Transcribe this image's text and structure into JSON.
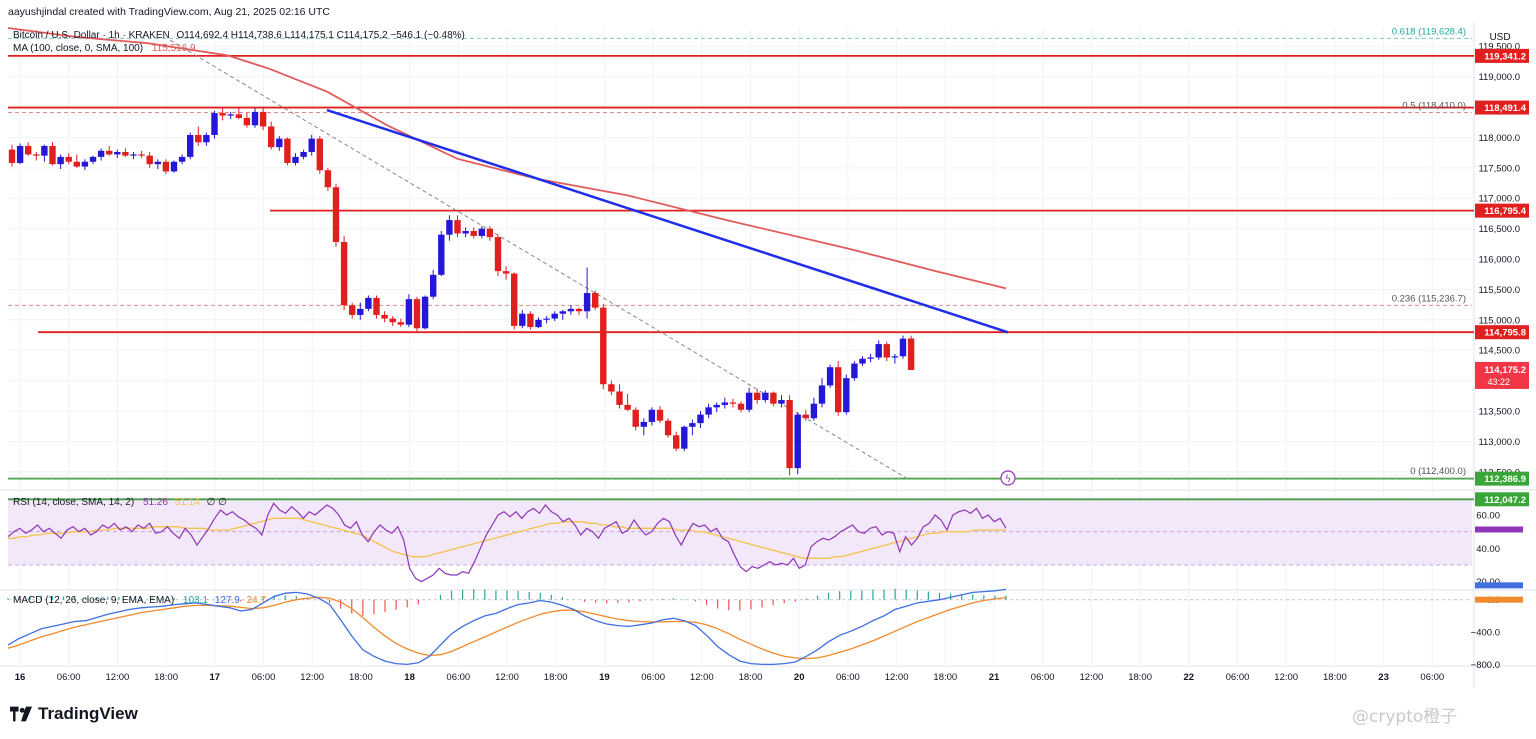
{
  "header": {
    "credit": "aayushjindal created with TradingView.com, Aug 21, 2025 02:16 UTC"
  },
  "legend": {
    "symbol": "Bitcoin / U.S. Dollar · 1h · KRAKEN",
    "ohlc": "O114,692.4  H114,738.6  L114,175.1  C114,175.2  −546.1 (−0.48%)",
    "ma_label": "MA (100, close, 0, SMA, 100)",
    "ma_value": "115,516.9",
    "rsi_label": "RSI (14, close, SMA, 14, 2)",
    "rsi_value": "51.26",
    "rsi_ma": "51.14",
    "rsi_extra": "∅  ∅",
    "macd_label": "MACD (12, 26, close, 9, EMA, EMA)",
    "macd_hist": "103.1",
    "macd_line": "127.9",
    "macd_signal": "24.7"
  },
  "brand": {
    "name": "TradingView",
    "watermark": "@crypto橙子"
  },
  "colors": {
    "bull": "#2418d6",
    "bear": "#e01f1f",
    "ma": "#e35a5a",
    "trend": "#1f2ee8",
    "resistance": "#e01f1f",
    "support": "#3aa63a",
    "rsi": "#8e35b8",
    "rsi_ma": "#f3c24a",
    "macd_line": "#3f6fe0",
    "signal": "#f08a2c",
    "hist_pos": "#26a69a",
    "hist_neg": "#ef5350",
    "price_badge": "#f23645"
  },
  "chart_data": {
    "type": "candlestick",
    "currency": "USD",
    "ylim": [
      112200,
      119800
    ],
    "y_ticks": [
      112500,
      113000,
      113500,
      114000,
      114500,
      115000,
      115500,
      116000,
      116500,
      117000,
      117500,
      118000,
      118500,
      119000,
      119500
    ],
    "x_ticks": [
      "16",
      "06:00",
      "12:00",
      "18:00",
      "17",
      "06:00",
      "12:00",
      "18:00",
      "18",
      "06:00",
      "12:00",
      "18:00",
      "19",
      "06:00",
      "12:00",
      "18:00",
      "20",
      "06:00",
      "12:00",
      "18:00",
      "21",
      "06:00",
      "12:00",
      "18:00",
      "22",
      "06:00",
      "12:00",
      "18:00",
      "23",
      "06:00"
    ],
    "candles": [
      [
        117800,
        117880,
        117520,
        117580
      ],
      [
        117580,
        117900,
        117560,
        117860
      ],
      [
        117860,
        117920,
        117700,
        117720
      ],
      [
        117720,
        117760,
        117620,
        117700
      ],
      [
        117700,
        117880,
        117600,
        117860
      ],
      [
        117860,
        117920,
        117540,
        117560
      ],
      [
        117560,
        117720,
        117480,
        117680
      ],
      [
        117680,
        117740,
        117560,
        117600
      ],
      [
        117600,
        117720,
        117500,
        117520
      ],
      [
        117520,
        117640,
        117460,
        117600
      ],
      [
        117600,
        117700,
        117560,
        117680
      ],
      [
        117680,
        117820,
        117620,
        117780
      ],
      [
        117780,
        117860,
        117700,
        117720
      ],
      [
        117720,
        117800,
        117660,
        117760
      ],
      [
        117760,
        117820,
        117680,
        117700
      ],
      [
        117700,
        117760,
        117640,
        117720
      ],
      [
        117720,
        117780,
        117660,
        117700
      ],
      [
        117700,
        117760,
        117500,
        117560
      ],
      [
        117560,
        117640,
        117480,
        117600
      ],
      [
        117600,
        117640,
        117400,
        117440
      ],
      [
        117440,
        117620,
        117420,
        117600
      ],
      [
        117600,
        117720,
        117560,
        117680
      ],
      [
        117680,
        118080,
        117640,
        118040
      ],
      [
        118040,
        118180,
        117860,
        117920
      ],
      [
        117920,
        118080,
        117860,
        118040
      ],
      [
        118040,
        118440,
        117980,
        118400
      ],
      [
        118400,
        118480,
        118280,
        118360
      ],
      [
        118360,
        118420,
        118300,
        118380
      ],
      [
        118380,
        118480,
        118300,
        118320
      ],
      [
        118320,
        118410,
        118160,
        118200
      ],
      [
        118200,
        118480,
        118160,
        118420
      ],
      [
        118420,
        118500,
        118120,
        118180
      ],
      [
        118180,
        118260,
        117800,
        117840
      ],
      [
        117840,
        118020,
        117780,
        117980
      ],
      [
        117980,
        118000,
        117540,
        117580
      ],
      [
        117580,
        117740,
        117540,
        117680
      ],
      [
        117680,
        117800,
        117640,
        117760
      ],
      [
        117760,
        118040,
        117700,
        117980
      ],
      [
        117980,
        118020,
        117400,
        117460
      ],
      [
        117460,
        117500,
        117120,
        117180
      ],
      [
        117180,
        117240,
        116200,
        116280
      ],
      [
        116280,
        116380,
        115160,
        115240
      ],
      [
        115240,
        115280,
        115020,
        115080
      ],
      [
        115080,
        115280,
        115000,
        115180
      ],
      [
        115180,
        115400,
        115140,
        115360
      ],
      [
        115360,
        115400,
        115020,
        115080
      ],
      [
        115080,
        115140,
        114960,
        115020
      ],
      [
        115020,
        115060,
        114900,
        114960
      ],
      [
        114960,
        115020,
        114880,
        114920
      ],
      [
        114920,
        115420,
        114880,
        115340
      ],
      [
        115340,
        115380,
        114800,
        114860
      ],
      [
        114860,
        115400,
        114840,
        115380
      ],
      [
        115380,
        115820,
        115340,
        115740
      ],
      [
        115740,
        116460,
        115720,
        116400
      ],
      [
        116400,
        116720,
        116300,
        116640
      ],
      [
        116640,
        116720,
        116360,
        116420
      ],
      [
        116420,
        116520,
        116360,
        116460
      ],
      [
        116460,
        116520,
        116340,
        116380
      ],
      [
        116380,
        116540,
        116340,
        116500
      ],
      [
        116500,
        116540,
        116300,
        116360
      ],
      [
        116360,
        116400,
        115720,
        115800
      ],
      [
        115800,
        115880,
        115660,
        115760
      ],
      [
        115760,
        115780,
        114840,
        114900
      ],
      [
        114900,
        115160,
        114860,
        115100
      ],
      [
        115100,
        115140,
        114840,
        114880
      ],
      [
        114880,
        115040,
        114860,
        115000
      ],
      [
        115000,
        115060,
        114940,
        115020
      ],
      [
        115020,
        115140,
        114980,
        115100
      ],
      [
        115100,
        115160,
        115000,
        115140
      ],
      [
        115140,
        115240,
        115080,
        115180
      ],
      [
        115180,
        115200,
        115080,
        115140
      ],
      [
        115140,
        115860,
        115020,
        115440
      ],
      [
        115440,
        115480,
        115160,
        115200
      ],
      [
        115200,
        115260,
        113860,
        113940
      ],
      [
        113940,
        114000,
        113760,
        113820
      ],
      [
        113820,
        113940,
        113540,
        113600
      ],
      [
        113600,
        113780,
        113500,
        113520
      ],
      [
        113520,
        113560,
        113180,
        113240
      ],
      [
        113240,
        113380,
        113100,
        113320
      ],
      [
        113320,
        113560,
        113260,
        113520
      ],
      [
        113520,
        113580,
        113300,
        113340
      ],
      [
        113340,
        113380,
        113060,
        113100
      ],
      [
        113100,
        113160,
        112840,
        112880
      ],
      [
        112880,
        113260,
        112840,
        113240
      ],
      [
        113240,
        113360,
        113100,
        113300
      ],
      [
        113300,
        113500,
        113220,
        113440
      ],
      [
        113440,
        113620,
        113380,
        113560
      ],
      [
        113560,
        113640,
        113480,
        113600
      ],
      [
        113600,
        113720,
        113540,
        113640
      ],
      [
        113640,
        113700,
        113560,
        113620
      ],
      [
        113620,
        113660,
        113480,
        113520
      ],
      [
        113520,
        113880,
        113480,
        113800
      ],
      [
        113800,
        113860,
        113620,
        113680
      ],
      [
        113680,
        113840,
        113640,
        113800
      ],
      [
        113800,
        113820,
        113580,
        113620
      ],
      [
        113620,
        113760,
        113560,
        113680
      ],
      [
        113680,
        113760,
        112440,
        112560
      ],
      [
        112560,
        113480,
        112460,
        113440
      ],
      [
        113440,
        113520,
        113340,
        113380
      ],
      [
        113380,
        113720,
        113340,
        113620
      ],
      [
        113620,
        114040,
        113560,
        113920
      ],
      [
        113920,
        114260,
        113880,
        114220
      ],
      [
        114220,
        114320,
        113420,
        113480
      ],
      [
        113480,
        114100,
        113440,
        114040
      ],
      [
        114040,
        114320,
        114000,
        114280
      ],
      [
        114280,
        114400,
        114240,
        114360
      ],
      [
        114360,
        114440,
        114300,
        114380
      ],
      [
        114380,
        114660,
        114340,
        114600
      ],
      [
        114600,
        114640,
        114320,
        114380
      ],
      [
        114380,
        114440,
        114280,
        114400
      ],
      [
        114400,
        114740,
        114360,
        114690
      ],
      [
        114692.4,
        114738.6,
        114175.1,
        114175.2
      ]
    ],
    "ma100": [
      [
        119800,
        0
      ],
      [
        119650,
        0.07
      ],
      [
        119550,
        0.14
      ],
      [
        119350,
        0.22
      ],
      [
        119140,
        0.26
      ],
      [
        118750,
        0.32
      ],
      [
        118200,
        0.38
      ],
      [
        117650,
        0.45
      ],
      [
        117320,
        0.53
      ],
      [
        117050,
        0.62
      ],
      [
        116640,
        0.72
      ],
      [
        116180,
        0.84
      ],
      [
        115800,
        0.93
      ],
      [
        115516.9,
        1.0
      ]
    ],
    "trendline": [
      [
        118450,
        0.293
      ],
      [
        114795,
        1.0
      ]
    ],
    "dashed_channel": [
      [
        119600,
        0.0
      ],
      [
        112400,
        0.9
      ]
    ],
    "levels": [
      {
        "label": "119,341.2",
        "price": 119341.2,
        "kind": "resistance"
      },
      {
        "label": "118,491.4",
        "price": 118491.4,
        "kind": "resistance"
      },
      {
        "label": "116,795.4",
        "price": 116795.4,
        "kind": "resistance"
      },
      {
        "label": "114,795.8",
        "price": 114795.8,
        "kind": "resistance"
      },
      {
        "label": "112,386.9",
        "price": 112386.9,
        "kind": "support"
      },
      {
        "label": "112,047.2",
        "price": 112047.2,
        "kind": "support"
      }
    ],
    "fib": [
      {
        "label": "0.618 (119,628.4)",
        "price": 119628.4
      },
      {
        "label": "0.5 (118,410.0)",
        "price": 118410.0
      },
      {
        "label": "0.236 (115,236.7)",
        "price": 115236.7
      },
      {
        "label": "0 (112,400.0)",
        "price": 112400.0
      }
    ],
    "last_price": {
      "label": "114,175.2",
      "timer": "43:22",
      "price": 114175.2
    },
    "rsi": {
      "ylim": [
        15,
        75
      ],
      "ticks": [
        60,
        40,
        20
      ],
      "band": [
        30,
        70
      ],
      "values": [
        47,
        50,
        52,
        49,
        51,
        54,
        50,
        52,
        49,
        46,
        51,
        53,
        50,
        52,
        48,
        50,
        54,
        52,
        55,
        51,
        53,
        50,
        54,
        52,
        55,
        49,
        50,
        53,
        49,
        46,
        52,
        48,
        42,
        47,
        52,
        58,
        63,
        60,
        62,
        59,
        57,
        54,
        52,
        48,
        60,
        67,
        63,
        61,
        65,
        62,
        58,
        62,
        60,
        63,
        66,
        64,
        60,
        54,
        52,
        56,
        48,
        44,
        50,
        54,
        51,
        49,
        53,
        45,
        28,
        22,
        20,
        22,
        24,
        28,
        25,
        24,
        24,
        26,
        25,
        32,
        40,
        48,
        54,
        60,
        62,
        59,
        62,
        58,
        62,
        64,
        61,
        66,
        62,
        60,
        56,
        58,
        54,
        48,
        52,
        50,
        46,
        52,
        54,
        56,
        49,
        51,
        57,
        52,
        48,
        50,
        55,
        58,
        56,
        48,
        42,
        49,
        55,
        53,
        54,
        50,
        52,
        46,
        44,
        36,
        29,
        26,
        29,
        28,
        30,
        32,
        30,
        31,
        30,
        34,
        28,
        30,
        41,
        44,
        46,
        45,
        47,
        50,
        52,
        54,
        50,
        49,
        52,
        53,
        48,
        50,
        49,
        38,
        47,
        42,
        46,
        53,
        55,
        60,
        57,
        51,
        60,
        62,
        63,
        61,
        64,
        58,
        60,
        56,
        58,
        52
      ],
      "ma": [
        46,
        46,
        47,
        47,
        48,
        48,
        49,
        49,
        49,
        49,
        50,
        50,
        50,
        50,
        51,
        51,
        51,
        52,
        52,
        52,
        52,
        52,
        52,
        53,
        53,
        53,
        53,
        53,
        52,
        52,
        52,
        52,
        51,
        51,
        51,
        51,
        52,
        53,
        54,
        55,
        56,
        57,
        58,
        58,
        58,
        58,
        58,
        57,
        56,
        55,
        54,
        53,
        52,
        51,
        50,
        49,
        48,
        46,
        44,
        42,
        40,
        38,
        37,
        36,
        35,
        35,
        35,
        36,
        37,
        38,
        39,
        40,
        41,
        42,
        43,
        44,
        45,
        46,
        47,
        48,
        49,
        50,
        51,
        52,
        53,
        54,
        55,
        55,
        56,
        56,
        56,
        56,
        55,
        55,
        54,
        54,
        53,
        53,
        52,
        52,
        52,
        52,
        52,
        52,
        52,
        52,
        51,
        51,
        51,
        50,
        50,
        49,
        48,
        47,
        46,
        45,
        44,
        43,
        42,
        41,
        40,
        39,
        38,
        37,
        36,
        35,
        34,
        34,
        34,
        34,
        34,
        35,
        35,
        36,
        37,
        38,
        39,
        40,
        41,
        42,
        43,
        44,
        45,
        46,
        47,
        48,
        49,
        49,
        50,
        50,
        50,
        50,
        50,
        51,
        51,
        51,
        51,
        51,
        51
      ]
    },
    "macd": {
      "ylim": [
        -820,
        120
      ],
      "ticks": [
        0,
        -400,
        -800
      ],
      "tick_labels": [
        "0.0",
        "−400.0",
        "−800.0"
      ],
      "line": [
        -560,
        -480,
        -420,
        -360,
        -330,
        -300,
        -270,
        -260,
        -220,
        -180,
        -150,
        -120,
        -100,
        -90,
        -80,
        -60,
        -50,
        -40,
        -60,
        -80,
        -100,
        -140,
        -120,
        -40,
        40,
        80,
        90,
        70,
        20,
        -60,
        -250,
        -450,
        -620,
        -700,
        -760,
        -790,
        -800,
        -780,
        -700,
        -560,
        -420,
        -330,
        -260,
        -200,
        -170,
        -110,
        -60,
        -40,
        -10,
        -30,
        -70,
        -120,
        -200,
        -260,
        -300,
        -320,
        -330,
        -310,
        -290,
        -250,
        -230,
        -260,
        -320,
        -440,
        -580,
        -680,
        -760,
        -790,
        -800,
        -800,
        -790,
        -770,
        -700,
        -620,
        -520,
        -440,
        -390,
        -330,
        -260,
        -200,
        -120,
        -80,
        -40,
        -20,
        0,
        30,
        60,
        90,
        100,
        110,
        127.9
      ],
      "signal": [
        -600,
        -560,
        -510,
        -460,
        -420,
        -380,
        -340,
        -310,
        -280,
        -250,
        -220,
        -190,
        -160,
        -140,
        -120,
        -100,
        -80,
        -70,
        -70,
        -75,
        -80,
        -95,
        -110,
        -100,
        -70,
        -30,
        0,
        20,
        30,
        20,
        -30,
        -110,
        -220,
        -340,
        -450,
        -540,
        -610,
        -660,
        -690,
        -680,
        -640,
        -580,
        -520,
        -460,
        -400,
        -340,
        -280,
        -230,
        -180,
        -150,
        -130,
        -130,
        -150,
        -180,
        -210,
        -240,
        -260,
        -270,
        -275,
        -275,
        -270,
        -270,
        -280,
        -310,
        -360,
        -420,
        -490,
        -550,
        -610,
        -660,
        -700,
        -720,
        -730,
        -720,
        -690,
        -650,
        -610,
        -560,
        -510,
        -450,
        -390,
        -330,
        -270,
        -220,
        -170,
        -120,
        -80,
        -40,
        -10,
        10,
        24.7
      ]
    }
  }
}
